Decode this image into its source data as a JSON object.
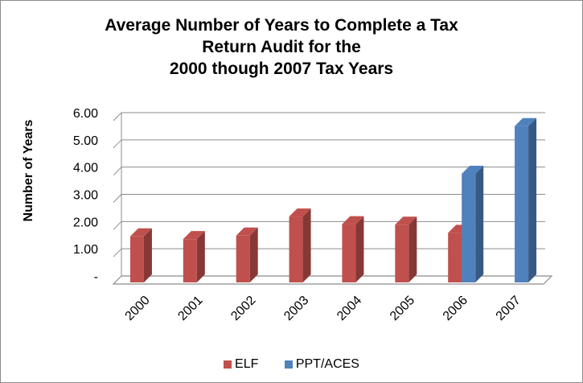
{
  "chart_data": {
    "type": "bar",
    "title_lines": [
      "Average Number of Years to Complete a Tax",
      "Return Audit for the",
      "2000 though 2007 Tax Years"
    ],
    "xlabel": "",
    "ylabel": "Number of Years",
    "ylim": [
      0,
      6
    ],
    "y_ticks": [
      {
        "value": 0,
        "label": "-"
      },
      {
        "value": 1,
        "label": "1.00"
      },
      {
        "value": 2,
        "label": "2.00"
      },
      {
        "value": 3,
        "label": "3.00"
      },
      {
        "value": 4,
        "label": "4.00"
      },
      {
        "value": 5,
        "label": "5.00"
      },
      {
        "value": 6,
        "label": "6.00"
      }
    ],
    "categories": [
      "2000",
      "2001",
      "2002",
      "2003",
      "2004",
      "2005",
      "2006",
      "2007"
    ],
    "series": [
      {
        "name": "ELF",
        "color": "#c0504d",
        "values": [
          1.75,
          1.65,
          1.78,
          2.48,
          2.2,
          2.18,
          1.88,
          null
        ]
      },
      {
        "name": "PPT/ACES",
        "color": "#4f81bd",
        "values": [
          null,
          null,
          null,
          null,
          null,
          null,
          4.05,
          5.8
        ]
      }
    ],
    "grid": true,
    "style": "3d-column",
    "legend_position": "bottom"
  }
}
